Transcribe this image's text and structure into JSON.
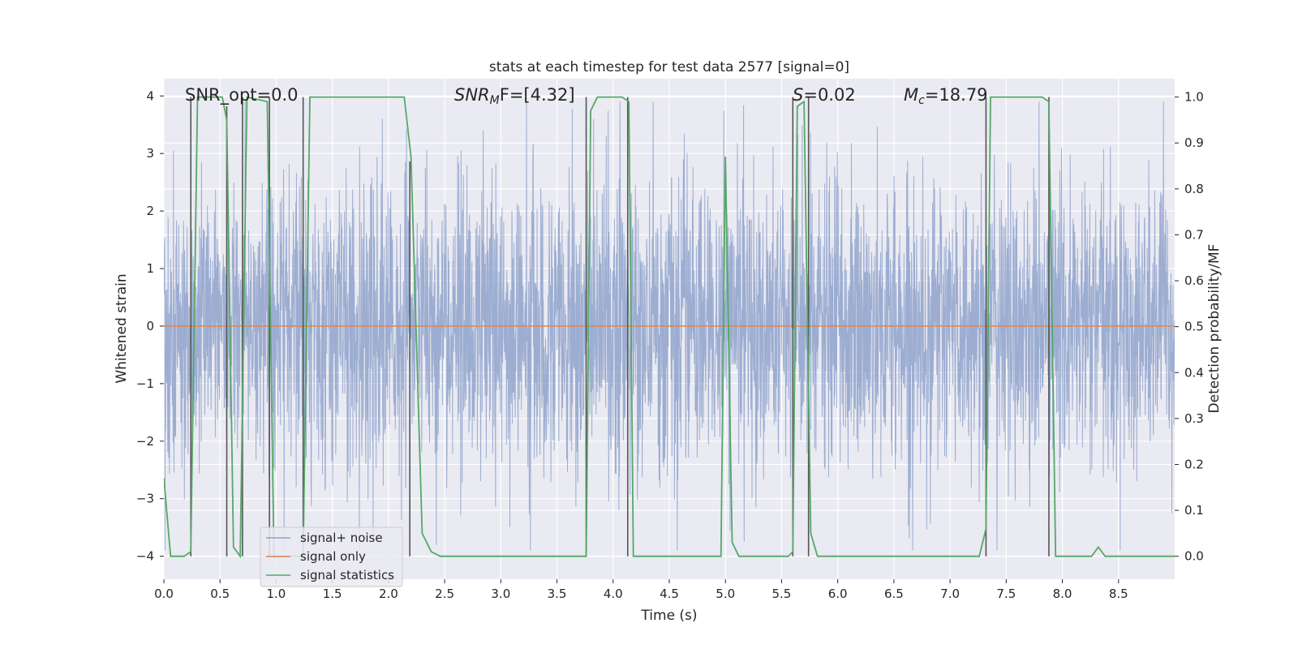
{
  "colors": {
    "background": "#eaeaf2",
    "grid": "#ffffff",
    "noise": "#8ea2cb",
    "signal_only": "#dd8452",
    "statistics": "#55a868",
    "bounds": "#555555"
  },
  "chart_data": {
    "type": "line",
    "title": "stats at each timestep for test data 2577 [signal=0]",
    "xlabel": "Time (s)",
    "ylabel_left": "Whitened strain",
    "ylabel_right": "Detection probability/MF",
    "xlim": [
      0.0,
      9.0
    ],
    "ylim_left": [
      -4.4,
      4.3
    ],
    "ylim_right": [
      -0.05,
      1.04
    ],
    "x_ticks": [
      "0.0",
      "0.5",
      "1.0",
      "1.5",
      "2.0",
      "2.5",
      "3.0",
      "3.5",
      "4.0",
      "4.5",
      "5.0",
      "5.5",
      "6.0",
      "6.5",
      "7.0",
      "7.5",
      "8.0",
      "8.5"
    ],
    "y_ticks_left": [
      "−4",
      "−3",
      "−2",
      "−1",
      "0",
      "1",
      "2",
      "3",
      "4"
    ],
    "y_ticks_right": [
      "0.0",
      "0.1",
      "0.2",
      "0.3",
      "0.4",
      "0.5",
      "0.6",
      "0.7",
      "0.8",
      "0.9",
      "1.0"
    ],
    "annotations": {
      "snr_opt": "SNR_opt=0.0",
      "snr_mf_label": "SNR",
      "snr_mf_sub": "M",
      "snr_mf_rest": "F=[4.32]",
      "s_label": "S",
      "s_rest": "=0.02",
      "mc_label": "M",
      "mc_sub": "c",
      "mc_rest": "=18.79"
    },
    "legend": {
      "location": "lower-left",
      "entries": [
        "signal+ noise",
        "signal only",
        "signal statistics"
      ]
    },
    "series": [
      {
        "name": "signal+ noise",
        "kind": "gaussian-noise",
        "sigma": 1.0,
        "t_start": 0.0,
        "t_end": 9.0,
        "peak_max": 3.9,
        "peak_min": -3.9
      },
      {
        "name": "signal only",
        "kind": "constant",
        "value": 0.0
      },
      {
        "name": "signal statistics",
        "kind": "line",
        "x": [
          0.0,
          0.06,
          0.18,
          0.24,
          0.3,
          0.52,
          0.56,
          0.62,
          0.68,
          0.74,
          0.92,
          0.98,
          1.24,
          1.3,
          2.14,
          2.2,
          2.3,
          2.38,
          2.46,
          3.76,
          3.8,
          3.86,
          4.08,
          4.14,
          4.18,
          4.96,
          5.0,
          5.06,
          5.12,
          5.56,
          5.6,
          5.64,
          5.7,
          5.76,
          5.82,
          7.26,
          7.32,
          7.36,
          7.82,
          7.88,
          7.94,
          8.1,
          8.26,
          8.32,
          8.38,
          9.0
        ],
        "values": [
          0.17,
          0.0,
          0.0,
          0.01,
          1.0,
          1.0,
          0.95,
          0.02,
          0.0,
          1.0,
          0.99,
          0.0,
          0.0,
          1.0,
          1.0,
          0.87,
          0.05,
          0.01,
          0.0,
          0.0,
          0.97,
          1.0,
          1.0,
          0.99,
          0.0,
          0.0,
          0.87,
          0.03,
          0.0,
          0.0,
          0.01,
          0.98,
          0.99,
          0.05,
          0.0,
          0.0,
          0.06,
          1.0,
          1.0,
          0.99,
          0.0,
          0.0,
          0.0,
          0.02,
          0.0,
          0.0
        ]
      }
    ],
    "bound_lines_x": [
      0.24,
      0.56,
      0.7,
      0.94,
      1.24,
      2.19,
      3.76,
      4.13,
      5.6,
      5.74,
      7.32,
      7.88
    ],
    "bound_lines_top": [
      1.0,
      0.98,
      1.0,
      1.0,
      1.0,
      0.86,
      1.0,
      1.0,
      1.0,
      1.0,
      1.0,
      1.0
    ]
  }
}
